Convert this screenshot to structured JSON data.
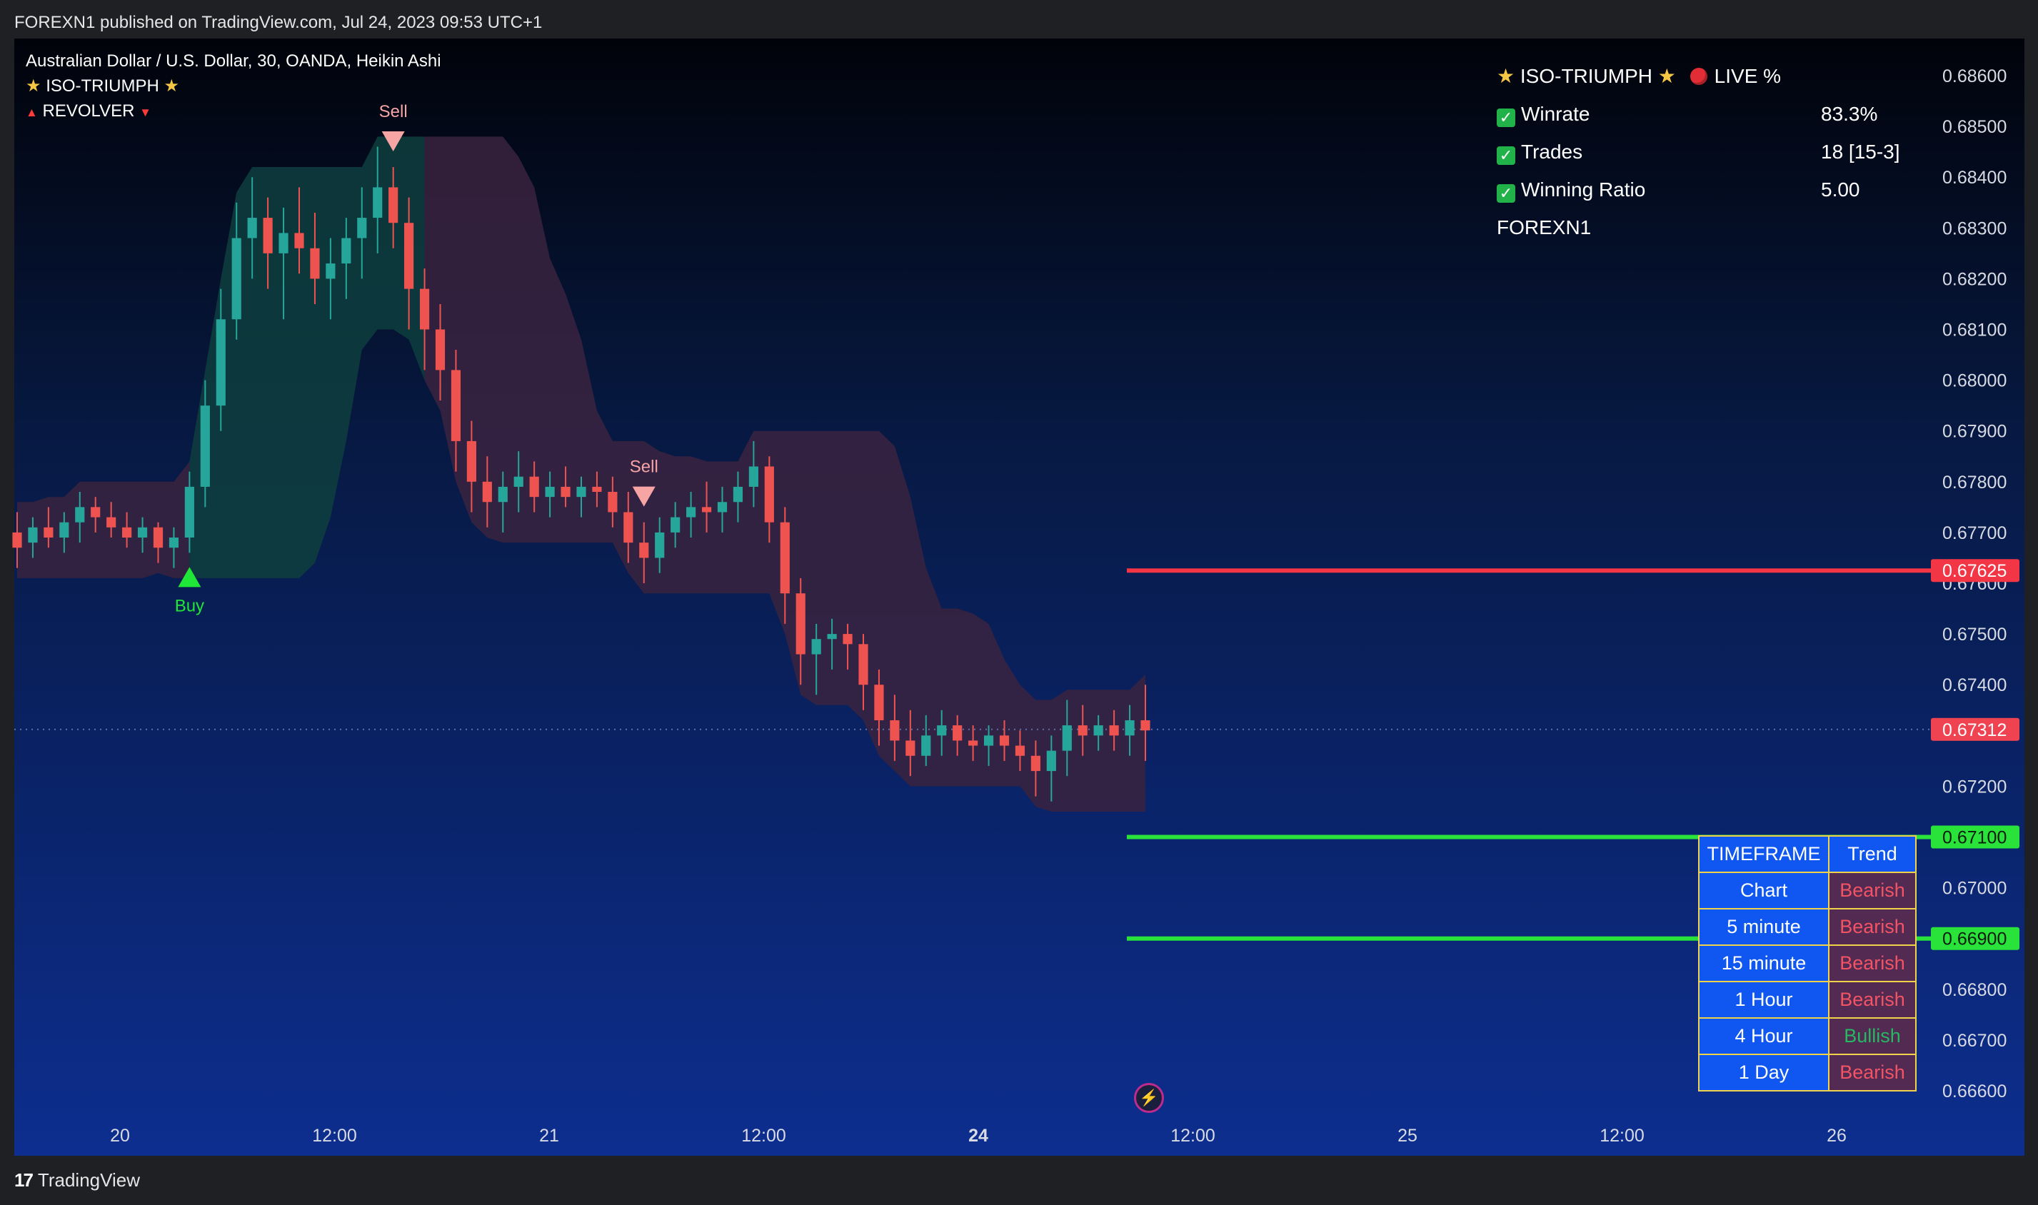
{
  "publish_line": "FOREXN1 published on TradingView.com, Jul 24, 2023 09:53 UTC+1",
  "header": {
    "symbol": "Australian Dollar / U.S. Dollar, 30, OANDA, Heikin Ashi",
    "indicator_1": "ISO-TRIUMPH",
    "indicator_2": "REVOLVER"
  },
  "stats_panel": {
    "title": "ISO-TRIUMPH",
    "live_label": "LIVE %",
    "rows": [
      {
        "label": "Winrate",
        "value": "83.3%"
      },
      {
        "label": "Trades",
        "value": "18 [15-3]"
      },
      {
        "label": "Winning Ratio",
        "value": "5.00"
      }
    ],
    "author": "FOREXN1"
  },
  "signals": {
    "buy": "Buy",
    "sell_1": "Sell",
    "sell_2": "Sell"
  },
  "price_axis": {
    "ticks": [
      "0.68600",
      "0.68500",
      "0.68400",
      "0.68300",
      "0.68200",
      "0.68100",
      "0.68000",
      "0.67900",
      "0.67800",
      "0.67700",
      "0.67600",
      "0.67500",
      "0.67400",
      "0.67300",
      "0.67200",
      "0.67100",
      "0.67000",
      "0.66900",
      "0.66800",
      "0.66700",
      "0.66600"
    ],
    "ticks_values": [
      0.686,
      0.685,
      0.684,
      0.683,
      0.682,
      0.681,
      0.68,
      0.679,
      0.678,
      0.677,
      0.676,
      0.675,
      0.674,
      0.673,
      0.672,
      0.671,
      0.67,
      0.669,
      0.668,
      0.667,
      0.666
    ],
    "hidden_ticks": [
      "0.67300"
    ],
    "labels": {
      "stop_loss": "0.67625",
      "current": "0.67312",
      "tp_1": "0.67100",
      "tp_2": "0.66900"
    },
    "label_values": {
      "stop_loss": 0.67625,
      "current": 0.67312,
      "tp_1": 0.671,
      "tp_2": 0.669
    }
  },
  "time_axis": {
    "ticks": [
      "20",
      "12:00",
      "21",
      "12:00",
      "24",
      "12:00",
      "25",
      "12:00",
      "26"
    ],
    "bold": [
      "24"
    ]
  },
  "trend_table": {
    "headers": [
      "TIMEFRAME",
      "Trend"
    ],
    "rows": [
      {
        "timeframe": "Chart",
        "trend": "Bearish"
      },
      {
        "timeframe": "5 minute",
        "trend": "Bearish"
      },
      {
        "timeframe": "15 minute",
        "trend": "Bearish"
      },
      {
        "timeframe": "1 Hour",
        "trend": "Bearish"
      },
      {
        "timeframe": "4 Hour",
        "trend": "Bullish"
      },
      {
        "timeframe": "1 Day",
        "trend": "Bearish"
      }
    ]
  },
  "colors": {
    "bull_candle": "#26a69a",
    "bear_candle": "#ef5350",
    "stop_loss_line": "#f23645",
    "take_profit_line": "#2ae33a",
    "bull_cloud": "#0e3e3e",
    "bear_cloud": "#3a2340",
    "buy_marker": "#20e637",
    "sell_marker": "#f7a4a4"
  },
  "footer": {
    "brand": "TradingView"
  },
  "chart_data": {
    "type": "candlestick",
    "title": "Australian Dollar / U.S. Dollar, 30, OANDA, Heikin Ashi",
    "xlabel": "",
    "ylabel": "",
    "ylim": [
      0.6655,
      0.6865
    ],
    "current_price": 0.67312,
    "stop_loss": 0.67625,
    "take_profits": [
      0.671,
      0.669
    ],
    "grid": false,
    "candles": [
      {
        "o": 0.677,
        "h": 0.6774,
        "l": 0.6763,
        "c": 0.6767
      },
      {
        "o": 0.6768,
        "h": 0.6773,
        "l": 0.6765,
        "c": 0.6771
      },
      {
        "o": 0.6771,
        "h": 0.6775,
        "l": 0.6767,
        "c": 0.6769
      },
      {
        "o": 0.6769,
        "h": 0.6774,
        "l": 0.6766,
        "c": 0.6772
      },
      {
        "o": 0.6772,
        "h": 0.6778,
        "l": 0.6768,
        "c": 0.6775
      },
      {
        "o": 0.6775,
        "h": 0.6777,
        "l": 0.677,
        "c": 0.6773
      },
      {
        "o": 0.6773,
        "h": 0.6776,
        "l": 0.6769,
        "c": 0.6771
      },
      {
        "o": 0.6771,
        "h": 0.6774,
        "l": 0.6767,
        "c": 0.6769
      },
      {
        "o": 0.6769,
        "h": 0.6773,
        "l": 0.6766,
        "c": 0.6771
      },
      {
        "o": 0.6771,
        "h": 0.6772,
        "l": 0.6764,
        "c": 0.6767
      },
      {
        "o": 0.6767,
        "h": 0.6771,
        "l": 0.6763,
        "c": 0.6769
      },
      {
        "o": 0.6769,
        "h": 0.6782,
        "l": 0.6766,
        "c": 0.6779
      },
      {
        "o": 0.6779,
        "h": 0.68,
        "l": 0.6775,
        "c": 0.6795
      },
      {
        "o": 0.6795,
        "h": 0.6818,
        "l": 0.679,
        "c": 0.6812
      },
      {
        "o": 0.6812,
        "h": 0.6835,
        "l": 0.6808,
        "c": 0.6828
      },
      {
        "o": 0.6828,
        "h": 0.684,
        "l": 0.682,
        "c": 0.6832
      },
      {
        "o": 0.6832,
        "h": 0.6836,
        "l": 0.6818,
        "c": 0.6825
      },
      {
        "o": 0.6825,
        "h": 0.6834,
        "l": 0.6812,
        "c": 0.6829
      },
      {
        "o": 0.6829,
        "h": 0.6838,
        "l": 0.6821,
        "c": 0.6826
      },
      {
        "o": 0.6826,
        "h": 0.6833,
        "l": 0.6815,
        "c": 0.682
      },
      {
        "o": 0.682,
        "h": 0.6828,
        "l": 0.6812,
        "c": 0.6823
      },
      {
        "o": 0.6823,
        "h": 0.6832,
        "l": 0.6816,
        "c": 0.6828
      },
      {
        "o": 0.6828,
        "h": 0.6838,
        "l": 0.682,
        "c": 0.6832
      },
      {
        "o": 0.6832,
        "h": 0.6846,
        "l": 0.6825,
        "c": 0.6838
      },
      {
        "o": 0.6838,
        "h": 0.6842,
        "l": 0.6826,
        "c": 0.6831
      },
      {
        "o": 0.6831,
        "h": 0.6836,
        "l": 0.681,
        "c": 0.6818
      },
      {
        "o": 0.6818,
        "h": 0.6822,
        "l": 0.6802,
        "c": 0.681
      },
      {
        "o": 0.681,
        "h": 0.6815,
        "l": 0.6796,
        "c": 0.6802
      },
      {
        "o": 0.6802,
        "h": 0.6806,
        "l": 0.6782,
        "c": 0.6788
      },
      {
        "o": 0.6788,
        "h": 0.6792,
        "l": 0.6774,
        "c": 0.678
      },
      {
        "o": 0.678,
        "h": 0.6785,
        "l": 0.6771,
        "c": 0.6776
      },
      {
        "o": 0.6776,
        "h": 0.6782,
        "l": 0.677,
        "c": 0.6779
      },
      {
        "o": 0.6779,
        "h": 0.6786,
        "l": 0.6774,
        "c": 0.6781
      },
      {
        "o": 0.6781,
        "h": 0.6784,
        "l": 0.6774,
        "c": 0.6777
      },
      {
        "o": 0.6777,
        "h": 0.6782,
        "l": 0.6773,
        "c": 0.6779
      },
      {
        "o": 0.6779,
        "h": 0.6783,
        "l": 0.6775,
        "c": 0.6777
      },
      {
        "o": 0.6777,
        "h": 0.6781,
        "l": 0.6773,
        "c": 0.6779
      },
      {
        "o": 0.6779,
        "h": 0.6782,
        "l": 0.6775,
        "c": 0.6778
      },
      {
        "o": 0.6778,
        "h": 0.6781,
        "l": 0.6771,
        "c": 0.6774
      },
      {
        "o": 0.6774,
        "h": 0.6778,
        "l": 0.6764,
        "c": 0.6768
      },
      {
        "o": 0.6768,
        "h": 0.6772,
        "l": 0.676,
        "c": 0.6765
      },
      {
        "o": 0.6765,
        "h": 0.6773,
        "l": 0.6762,
        "c": 0.677
      },
      {
        "o": 0.677,
        "h": 0.6776,
        "l": 0.6767,
        "c": 0.6773
      },
      {
        "o": 0.6773,
        "h": 0.6778,
        "l": 0.6769,
        "c": 0.6775
      },
      {
        "o": 0.6775,
        "h": 0.678,
        "l": 0.677,
        "c": 0.6774
      },
      {
        "o": 0.6774,
        "h": 0.6779,
        "l": 0.677,
        "c": 0.6776
      },
      {
        "o": 0.6776,
        "h": 0.6782,
        "l": 0.6772,
        "c": 0.6779
      },
      {
        "o": 0.6779,
        "h": 0.6788,
        "l": 0.6775,
        "c": 0.6783
      },
      {
        "o": 0.6783,
        "h": 0.6785,
        "l": 0.6768,
        "c": 0.6772
      },
      {
        "o": 0.6772,
        "h": 0.6775,
        "l": 0.6752,
        "c": 0.6758
      },
      {
        "o": 0.6758,
        "h": 0.6761,
        "l": 0.674,
        "c": 0.6746
      },
      {
        "o": 0.6746,
        "h": 0.6752,
        "l": 0.6738,
        "c": 0.6749
      },
      {
        "o": 0.6749,
        "h": 0.6753,
        "l": 0.6743,
        "c": 0.675
      },
      {
        "o": 0.675,
        "h": 0.6752,
        "l": 0.6743,
        "c": 0.6748
      },
      {
        "o": 0.6748,
        "h": 0.675,
        "l": 0.6735,
        "c": 0.674
      },
      {
        "o": 0.674,
        "h": 0.6743,
        "l": 0.6728,
        "c": 0.6733
      },
      {
        "o": 0.6733,
        "h": 0.6738,
        "l": 0.6725,
        "c": 0.6729
      },
      {
        "o": 0.6729,
        "h": 0.6735,
        "l": 0.6722,
        "c": 0.6726
      },
      {
        "o": 0.6726,
        "h": 0.6734,
        "l": 0.6724,
        "c": 0.673
      },
      {
        "o": 0.673,
        "h": 0.6735,
        "l": 0.6726,
        "c": 0.6732
      },
      {
        "o": 0.6732,
        "h": 0.6734,
        "l": 0.6726,
        "c": 0.6729
      },
      {
        "o": 0.6729,
        "h": 0.6732,
        "l": 0.6725,
        "c": 0.6728
      },
      {
        "o": 0.6728,
        "h": 0.6732,
        "l": 0.6724,
        "c": 0.673
      },
      {
        "o": 0.673,
        "h": 0.6733,
        "l": 0.6725,
        "c": 0.6728
      },
      {
        "o": 0.6728,
        "h": 0.6731,
        "l": 0.6723,
        "c": 0.6726
      },
      {
        "o": 0.6726,
        "h": 0.6729,
        "l": 0.6718,
        "c": 0.6723
      },
      {
        "o": 0.6723,
        "h": 0.673,
        "l": 0.6717,
        "c": 0.6727
      },
      {
        "o": 0.6727,
        "h": 0.6737,
        "l": 0.6722,
        "c": 0.6732
      },
      {
        "o": 0.6732,
        "h": 0.6736,
        "l": 0.6726,
        "c": 0.673
      },
      {
        "o": 0.673,
        "h": 0.6734,
        "l": 0.6727,
        "c": 0.6732
      },
      {
        "o": 0.6732,
        "h": 0.6735,
        "l": 0.6727,
        "c": 0.673
      },
      {
        "o": 0.673,
        "h": 0.6736,
        "l": 0.6726,
        "c": 0.6733
      },
      {
        "o": 0.6733,
        "h": 0.674,
        "l": 0.6725,
        "c": 0.6731
      }
    ]
  }
}
